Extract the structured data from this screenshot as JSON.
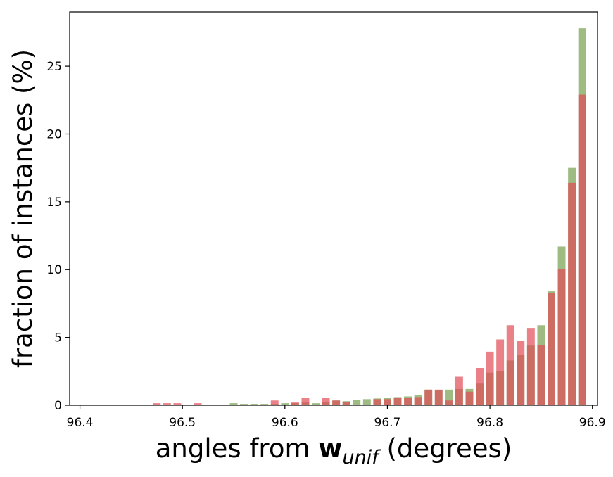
{
  "chart_data": {
    "type": "bar",
    "xlabel_parts": {
      "prefix": "angles from ",
      "symbol": "w",
      "subscript": "unif",
      "suffix": " (degrees)"
    },
    "ylabel": "fraction of instances (%)",
    "xlim": [
      96.39,
      96.905
    ],
    "ylim": [
      0,
      29
    ],
    "xticks": [
      "96.4",
      "96.5",
      "96.6",
      "96.7",
      "96.8",
      "96.9"
    ],
    "yticks": [
      "0",
      "5",
      "10",
      "15",
      "20",
      "25"
    ],
    "bar_width": 0.0075,
    "series": [
      {
        "color": "#8daf6c",
        "opacity": 0.85,
        "x": [
          96.55,
          96.56,
          96.57,
          96.58,
          96.59,
          96.6,
          96.61,
          96.62,
          96.63,
          96.64,
          96.65,
          96.66,
          96.67,
          96.68,
          96.69,
          96.7,
          96.71,
          96.72,
          96.73,
          96.74,
          96.75,
          96.76,
          96.77,
          96.78,
          96.79,
          96.8,
          96.81,
          96.82,
          96.83,
          96.84,
          96.85,
          96.86,
          96.87,
          96.88,
          96.89
        ],
        "values": [
          0.15,
          0.1,
          0.1,
          0.1,
          0.1,
          0.15,
          0.15,
          0.2,
          0.15,
          0.25,
          0.35,
          0.3,
          0.4,
          0.45,
          0.5,
          0.55,
          0.6,
          0.65,
          0.75,
          1.15,
          1.1,
          1.15,
          1.2,
          1.2,
          1.6,
          2.4,
          2.5,
          3.3,
          3.7,
          4.4,
          5.9,
          8.4,
          11.7,
          17.5,
          27.8
        ]
      },
      {
        "color": "#e14a55",
        "opacity": 0.7,
        "x": [
          96.475,
          96.485,
          96.495,
          96.515,
          96.59,
          96.61,
          96.62,
          96.64,
          96.65,
          96.66,
          96.69,
          96.7,
          96.71,
          96.72,
          96.73,
          96.74,
          96.75,
          96.76,
          96.77,
          96.78,
          96.79,
          96.8,
          96.81,
          96.82,
          96.83,
          96.84,
          96.85,
          96.86,
          96.87,
          96.88,
          96.89
        ],
        "values": [
          0.15,
          0.15,
          0.15,
          0.15,
          0.35,
          0.2,
          0.55,
          0.55,
          0.35,
          0.25,
          0.45,
          0.45,
          0.55,
          0.55,
          0.6,
          1.15,
          1.15,
          0.35,
          2.1,
          1.0,
          2.75,
          3.95,
          4.85,
          5.9,
          4.75,
          5.7,
          4.45,
          8.3,
          10.05,
          16.4,
          22.9
        ]
      }
    ]
  }
}
